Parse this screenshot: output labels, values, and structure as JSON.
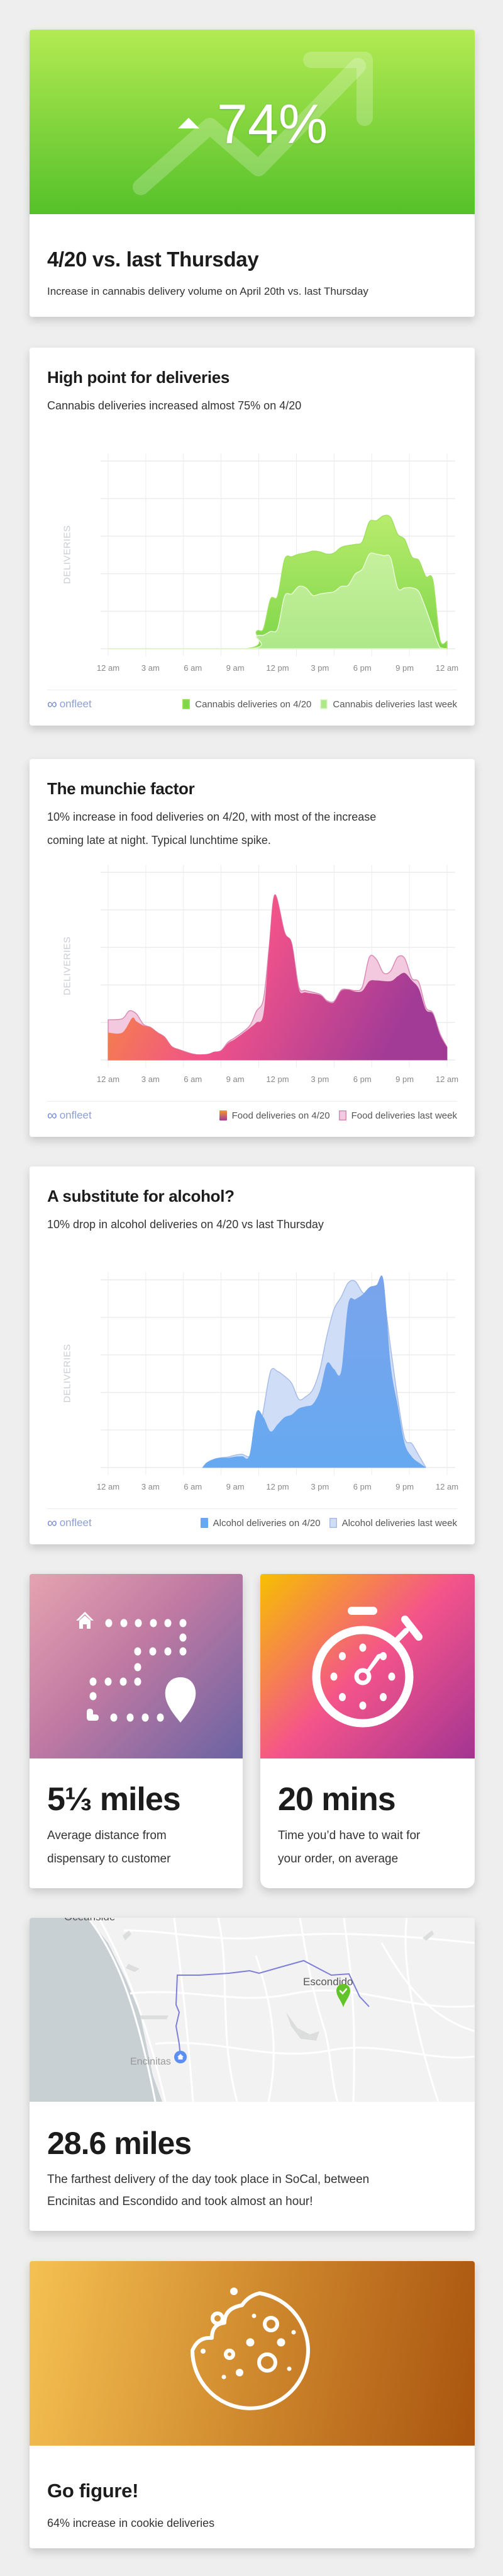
{
  "hero_card": {
    "stat": "74%",
    "title": "4/20 vs. last Thursday",
    "subtitle": "Increase in cannabis delivery volume on April 20th vs. last Thursday",
    "colors": {
      "gradient_top": "#b3ea52",
      "gradient_bottom": "#55c12a"
    },
    "icons": [
      "trend-up-arrow-icon",
      "triangle-up-icon"
    ]
  },
  "brand": {
    "logo_text": "onfleet",
    "logo_icon": "infinity-icon"
  },
  "chart_cards": [
    {
      "title": "High point for deliveries",
      "subtitle_lines": [
        "Cannabis deliveries increased almost 75% on 4/20"
      ]
    },
    {
      "title": "The munchie factor",
      "subtitle_lines": [
        "10% increase in food deliveries on 4/20, with most of the increase",
        "coming late at night. Typical lunchtime spike."
      ]
    },
    {
      "title": "A substitute for alcohol?",
      "subtitle_lines": [
        "10% drop in alcohol deliveries on 4/20 vs last Thursday"
      ]
    }
  ],
  "chart_data": [
    {
      "type": "area",
      "ylabel": "DELIVERIES",
      "x_tick_labels": [
        "12 am",
        "3 am",
        "6 am",
        "9 am",
        "12 pm",
        "3 pm",
        "6 pm",
        "9 pm",
        "12 am"
      ],
      "xlim": [
        0,
        24
      ],
      "ylim": [
        0,
        5
      ],
      "grid": true,
      "legend": "bottom-right",
      "draw_order": [
        "Cannabis deliveries on 4/20",
        "Cannabis deliveries last week"
      ],
      "series": [
        {
          "name": "Cannabis deliveries on 4/20",
          "color": "#7fd64a",
          "color2": "#b8ec6c",
          "stroke": "#9fe060",
          "points": [
            [
              0,
              0
            ],
            [
              9.8,
              0
            ],
            [
              10.5,
              0.46
            ],
            [
              11,
              0.53
            ],
            [
              11.5,
              1.32
            ],
            [
              12,
              1.4
            ],
            [
              12.5,
              2.38
            ],
            [
              13,
              2.45
            ],
            [
              13.5,
              2.52
            ],
            [
              14,
              2.55
            ],
            [
              14.5,
              2.6
            ],
            [
              15,
              2.58
            ],
            [
              15.5,
              2.52
            ],
            [
              16,
              2.55
            ],
            [
              16.5,
              2.7
            ],
            [
              17,
              2.75
            ],
            [
              17.5,
              2.78
            ],
            [
              18,
              2.85
            ],
            [
              18.5,
              3.38
            ],
            [
              19,
              3.41
            ],
            [
              19.5,
              3.54
            ],
            [
              20,
              3.5
            ],
            [
              20.5,
              3.05
            ],
            [
              21,
              2.91
            ],
            [
              21.5,
              2.45
            ],
            [
              22,
              2.35
            ],
            [
              22.5,
              1.92
            ],
            [
              23,
              1.82
            ],
            [
              23.5,
              0.23
            ],
            [
              24,
              0.2
            ]
          ]
        },
        {
          "name": "Cannabis deliveries last week",
          "color": "#aee889",
          "color2": "#c6f09c",
          "stroke": "#e6f9d4",
          "points": [
            [
              0,
              0
            ],
            [
              10,
              0
            ],
            [
              10.5,
              0.33
            ],
            [
              11,
              0.36
            ],
            [
              11.5,
              0.46
            ],
            [
              12,
              0.53
            ],
            [
              12.5,
              1.4
            ],
            [
              13,
              1.46
            ],
            [
              13.5,
              1.66
            ],
            [
              14,
              1.62
            ],
            [
              14.5,
              1.42
            ],
            [
              15,
              1.46
            ],
            [
              15.5,
              1.49
            ],
            [
              16,
              1.52
            ],
            [
              16.5,
              1.66
            ],
            [
              17,
              1.69
            ],
            [
              17.5,
              1.99
            ],
            [
              18,
              2.12
            ],
            [
              18.5,
              2.52
            ],
            [
              19,
              2.52
            ],
            [
              19.5,
              2.48
            ],
            [
              20,
              2.42
            ],
            [
              20.5,
              1.62
            ],
            [
              21,
              1.62
            ],
            [
              21.5,
              1.62
            ],
            [
              22,
              1.52
            ],
            [
              22.5,
              1.06
            ],
            [
              23,
              0.53
            ],
            [
              23.5,
              0.03
            ],
            [
              24,
              0
            ]
          ]
        }
      ]
    },
    {
      "type": "area",
      "ylabel": "DELIVERIES",
      "x_tick_labels": [
        "12 am",
        "3 am",
        "6 am",
        "9 am",
        "12 pm",
        "3 pm",
        "6 pm",
        "9 pm",
        "12 am"
      ],
      "xlim": [
        0,
        24
      ],
      "ylim": [
        0,
        5
      ],
      "grid": true,
      "legend": "bottom-right",
      "draw_order": [
        "Food deliveries last week",
        "Food deliveries on 4/20"
      ],
      "series": [
        {
          "name": "Food deliveries on 4/20",
          "color": "#f0528a",
          "gradient": [
            "#f7962e",
            "#f0528a",
            "#a23b96"
          ],
          "stroke": "none",
          "points": [
            [
              0,
              0.73
            ],
            [
              1,
              0.73
            ],
            [
              1.7,
              1.12
            ],
            [
              2,
              1.03
            ],
            [
              2.5,
              0.92
            ],
            [
              3,
              0.87
            ],
            [
              3.5,
              0.73
            ],
            [
              4,
              0.61
            ],
            [
              4.5,
              0.36
            ],
            [
              5,
              0.28
            ],
            [
              6,
              0.16
            ],
            [
              7,
              0.16
            ],
            [
              7.5,
              0.22
            ],
            [
              8,
              0.25
            ],
            [
              8.5,
              0.45
            ],
            [
              9,
              0.56
            ],
            [
              10,
              0.84
            ],
            [
              10.5,
              1.0
            ],
            [
              11,
              1.23
            ],
            [
              11.4,
              3.0
            ],
            [
              11.8,
              4.4
            ],
            [
              12.5,
              3.4
            ],
            [
              13,
              3.1
            ],
            [
              13.5,
              1.9
            ],
            [
              14,
              1.8
            ],
            [
              15,
              1.73
            ],
            [
              15.5,
              1.56
            ],
            [
              16,
              1.54
            ],
            [
              16.5,
              1.84
            ],
            [
              17,
              1.87
            ],
            [
              17.5,
              1.82
            ],
            [
              18,
              1.84
            ],
            [
              18.5,
              2.1
            ],
            [
              19,
              2.12
            ],
            [
              20,
              2.1
            ],
            [
              20.5,
              2.23
            ],
            [
              21,
              2.32
            ],
            [
              21.5,
              2.12
            ],
            [
              22,
              1.9
            ],
            [
              22.5,
              1.34
            ],
            [
              23,
              1.23
            ],
            [
              23.5,
              0.67
            ],
            [
              24,
              0.34
            ]
          ]
        },
        {
          "name": "Food deliveries last week",
          "color": "#f2c9de",
          "stroke": "#d98bb6",
          "points": [
            [
              0,
              1.07
            ],
            [
              1,
              1.1
            ],
            [
              1.5,
              1.31
            ],
            [
              2,
              1.23
            ],
            [
              2.5,
              0.95
            ],
            [
              3,
              0.87
            ],
            [
              3.5,
              0.73
            ],
            [
              4,
              0.61
            ],
            [
              4.5,
              0.36
            ],
            [
              5,
              0.28
            ],
            [
              6,
              0.16
            ],
            [
              7,
              0.12
            ],
            [
              7.5,
              0.2
            ],
            [
              8,
              0.25
            ],
            [
              8.5,
              0.48
            ],
            [
              9,
              0.6
            ],
            [
              10,
              0.9
            ],
            [
              10.5,
              1.3
            ],
            [
              11,
              1.62
            ],
            [
              11.4,
              3.0
            ],
            [
              11.8,
              4.4
            ],
            [
              12.5,
              3.4
            ],
            [
              13,
              3.1
            ],
            [
              13.5,
              1.95
            ],
            [
              14,
              1.85
            ],
            [
              15,
              1.75
            ],
            [
              15.5,
              1.58
            ],
            [
              16,
              1.56
            ],
            [
              16.5,
              1.86
            ],
            [
              17,
              1.88
            ],
            [
              17.5,
              1.85
            ],
            [
              18,
              1.95
            ],
            [
              18.5,
              2.74
            ],
            [
              19,
              2.68
            ],
            [
              19.5,
              2.32
            ],
            [
              20,
              2.37
            ],
            [
              20.5,
              2.74
            ],
            [
              21,
              2.71
            ],
            [
              21.5,
              2.18
            ],
            [
              22,
              2.07
            ],
            [
              22.5,
              1.4
            ],
            [
              23,
              1.25
            ],
            [
              23.5,
              0.7
            ],
            [
              24,
              0.34
            ]
          ]
        }
      ]
    },
    {
      "type": "area",
      "ylabel": "DELIVERIES",
      "x_tick_labels": [
        "12 am",
        "3 am",
        "6 am",
        "9 am",
        "12 pm",
        "3 pm",
        "6 pm",
        "9 pm",
        "12 am"
      ],
      "xlim": [
        0,
        24
      ],
      "ylim": [
        0,
        5
      ],
      "grid": true,
      "legend": "bottom-right",
      "draw_order": [
        "Alcohol deliveries last week",
        "Alcohol deliveries on 4/20"
      ],
      "series": [
        {
          "name": "Alcohol deliveries on 4/20",
          "color": "#66a9f0",
          "color2": "#7aa4ec",
          "stroke": "none",
          "points": [
            [
              6.7,
              0
            ],
            [
              7,
              0.13
            ],
            [
              7.5,
              0.22
            ],
            [
              8,
              0.26
            ],
            [
              8.5,
              0.26
            ],
            [
              9,
              0.29
            ],
            [
              9.5,
              0.3
            ],
            [
              10,
              0.32
            ],
            [
              10.5,
              1.47
            ],
            [
              11,
              1.34
            ],
            [
              11.5,
              0.96
            ],
            [
              12,
              1.15
            ],
            [
              12.5,
              1.34
            ],
            [
              13,
              1.41
            ],
            [
              13.5,
              1.57
            ],
            [
              14,
              1.63
            ],
            [
              14.5,
              1.69
            ],
            [
              15,
              2.05
            ],
            [
              15.5,
              2.78
            ],
            [
              16,
              2.62
            ],
            [
              16.5,
              2.56
            ],
            [
              17,
              4.35
            ],
            [
              17.5,
              4.48
            ],
            [
              18,
              4.6
            ],
            [
              18.5,
              4.8
            ],
            [
              19,
              4.86
            ],
            [
              19.5,
              4.99
            ],
            [
              20,
              2.75
            ],
            [
              20.5,
              1.66
            ],
            [
              21,
              0.64
            ],
            [
              21.5,
              0.29
            ],
            [
              22,
              0.13
            ],
            [
              22.5,
              0
            ]
          ]
        },
        {
          "name": "Alcohol deliveries last week",
          "color": "#d0ddf7",
          "stroke": "#a8bce8",
          "points": [
            [
              6.7,
              0
            ],
            [
              7,
              0.13
            ],
            [
              7.5,
              0.22
            ],
            [
              8,
              0.26
            ],
            [
              8.5,
              0.28
            ],
            [
              9,
              0.33
            ],
            [
              9.5,
              0.35
            ],
            [
              10,
              0.29
            ],
            [
              10.5,
              0.51
            ],
            [
              11,
              1.53
            ],
            [
              11.5,
              2.56
            ],
            [
              12,
              2.56
            ],
            [
              12.5,
              2.43
            ],
            [
              13,
              2.24
            ],
            [
              13.5,
              1.82
            ],
            [
              14,
              1.89
            ],
            [
              14.5,
              2.08
            ],
            [
              15,
              2.62
            ],
            [
              15.5,
              3.52
            ],
            [
              16,
              4.22
            ],
            [
              16.5,
              4.54
            ],
            [
              17,
              4.92
            ],
            [
              17.5,
              4.96
            ],
            [
              18,
              4.67
            ],
            [
              18.5,
              4.57
            ],
            [
              19,
              4.57
            ],
            [
              19.5,
              4.57
            ],
            [
              20,
              3.2
            ],
            [
              20.5,
              1.85
            ],
            [
              21,
              0.77
            ],
            [
              21.5,
              0.64
            ],
            [
              22,
              0.32
            ],
            [
              22.5,
              0
            ]
          ]
        }
      ]
    }
  ],
  "distance_card": {
    "stat": "5⅓ miles",
    "subtitle_lines": [
      "Average distance from",
      "dispensary to customer"
    ],
    "icon": "route-map-icon",
    "colors": {
      "from": "#e4a4b0",
      "to": "#6a63a2"
    }
  },
  "time_card": {
    "stat": "20 mins",
    "subtitle_lines": [
      "Time you’d have to wait for",
      "your order, on average"
    ],
    "icon": "stopwatch-icon",
    "colors": {
      "from": "#f6c000",
      "mid": "#f4548a",
      "to": "#a23592"
    }
  },
  "map_card": {
    "map": {
      "labels": {
        "top": "Oceanside",
        "destination": "Escondido",
        "origin": "Encinitas"
      },
      "route_color": "#7d7fd8",
      "ocean_color": "#c9d0d4"
    },
    "stat": "28.6 miles",
    "subtitle_lines": [
      "The farthest delivery of the day took place in SoCal, between",
      "Encinitas and Escondido and took almost an hour!"
    ]
  },
  "cookie_card": {
    "title": "Go figure!",
    "subtitle": "64% increase in cookie deliveries",
    "icon": "cookie-icon",
    "colors": {
      "from": "#f5c152",
      "to": "#a9540f"
    }
  }
}
